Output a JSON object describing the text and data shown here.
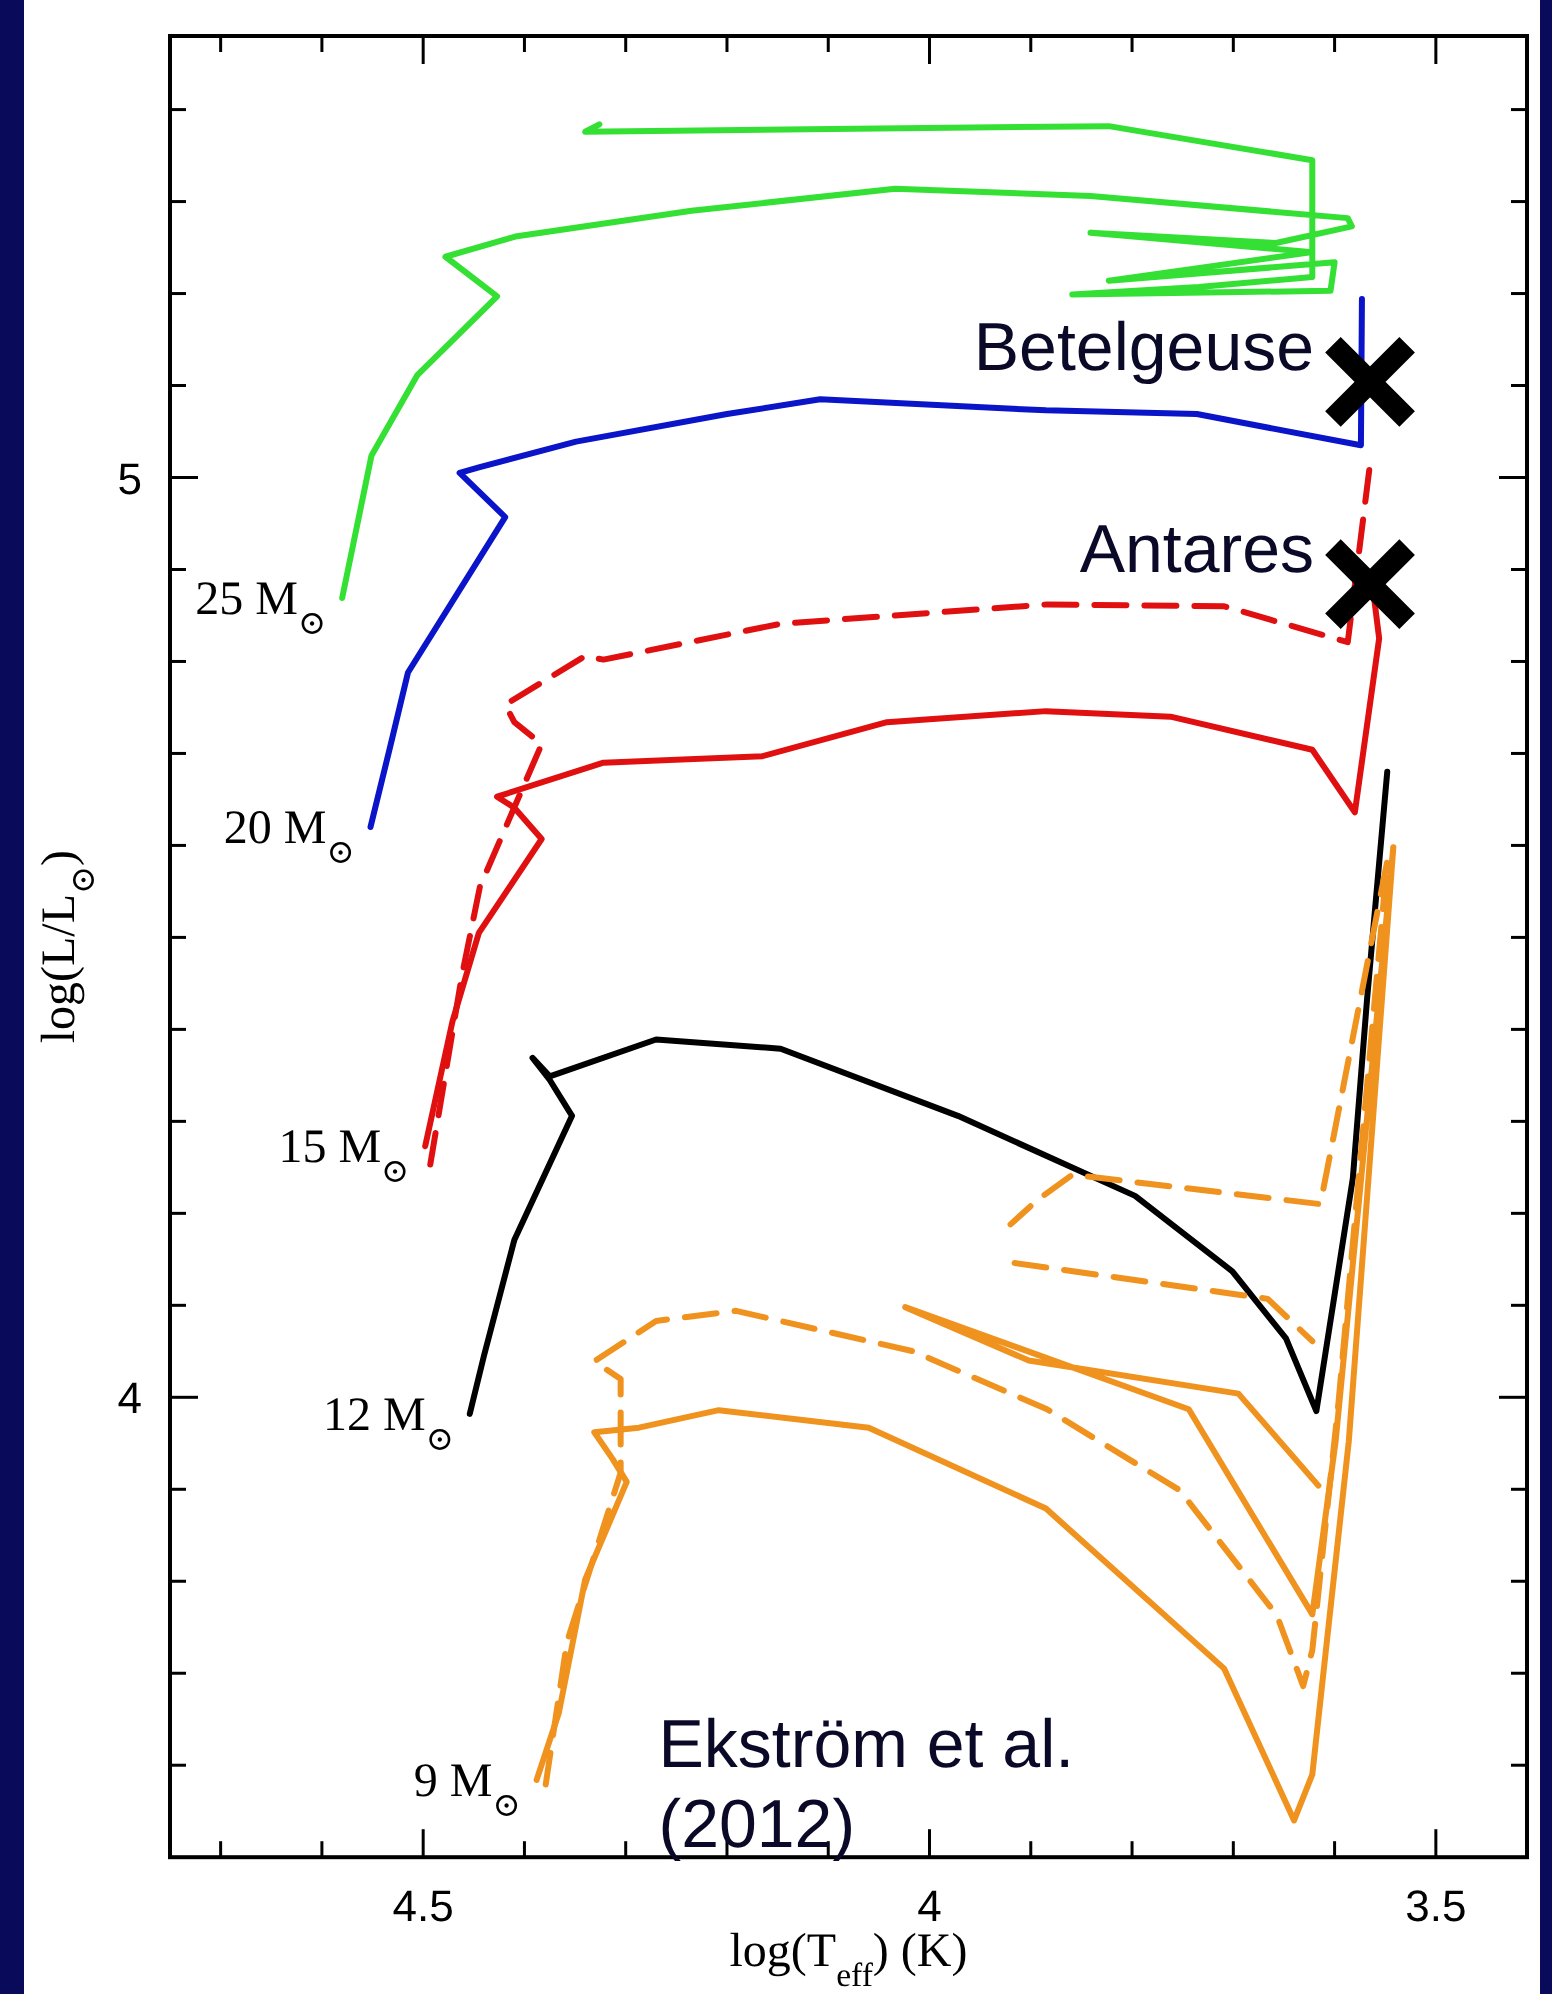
{
  "chart_data": {
    "type": "line",
    "xlabel": "log(T$_{eff}$) (K)",
    "ylabel": "log(L/L$_{⊙}$)",
    "xlim": [
      4.75,
      3.41
    ],
    "ylim": [
      3.5,
      5.48
    ],
    "xticks": [
      {
        "value": 4.7,
        "label": null
      },
      {
        "value": 4.6,
        "label": null
      },
      4.5,
      {
        "value": 4.4,
        "label": null
      },
      {
        "value": 4.3,
        "label": null
      },
      {
        "value": 4.2,
        "label": null
      },
      {
        "value": 4.1,
        "label": null
      },
      4,
      {
        "value": 3.9,
        "label": null
      },
      {
        "value": 3.8,
        "label": null
      },
      {
        "value": 3.7,
        "label": null
      },
      {
        "value": 3.6,
        "label": null
      },
      3.5
    ],
    "yticks": [
      {
        "value": 3.6,
        "label": null
      },
      {
        "value": 3.7,
        "label": null
      },
      {
        "value": 3.8,
        "label": null
      },
      {
        "value": 3.9,
        "label": null
      },
      4,
      {
        "value": 4.1,
        "label": null
      },
      {
        "value": 4.2,
        "label": null
      },
      {
        "value": 4.3,
        "label": null
      },
      {
        "value": 4.4,
        "label": null
      },
      {
        "value": 4.5,
        "label": null
      },
      {
        "value": 4.6,
        "label": null
      },
      {
        "value": 4.7,
        "label": null
      },
      {
        "value": 4.8,
        "label": null
      },
      {
        "value": 4.9,
        "label": null
      },
      5,
      {
        "value": 5.1,
        "label": null
      },
      {
        "value": 5.2,
        "label": null
      },
      {
        "value": 5.3,
        "label": null
      },
      {
        "value": 5.4,
        "label": null
      }
    ],
    "series": [
      {
        "color": "#33e033",
        "line_style": "solid",
        "x": [
          4.58,
          4.551,
          4.506,
          4.427,
          4.478,
          4.409,
          4.235,
          4.034,
          3.841,
          3.587,
          3.583,
          3.658,
          3.841,
          3.622,
          3.823,
          3.6,
          3.604,
          3.859,
          3.734,
          3.622,
          3.622,
          3.823,
          4.34,
          4.326
        ],
        "values": [
          4.869,
          5.024,
          5.111,
          5.197,
          5.24,
          5.262,
          5.29,
          5.314,
          5.306,
          5.282,
          5.273,
          5.255,
          5.266,
          5.245,
          5.214,
          5.234,
          5.203,
          5.199,
          5.207,
          5.218,
          5.345,
          5.382,
          5.376,
          5.384
        ]
      },
      {
        "color": "#0a14c8",
        "line_style": "solid",
        "x": [
          4.552,
          4.532,
          4.515,
          4.419,
          4.464,
          4.445,
          4.349,
          4.2,
          4.108,
          3.885,
          3.736,
          3.574,
          3.573
        ],
        "values": [
          4.62,
          4.71,
          4.788,
          4.957,
          5.005,
          5.011,
          5.039,
          5.069,
          5.085,
          5.073,
          5.069,
          5.035,
          5.194
        ]
      },
      {
        "color": "#e01010",
        "line_style": "solid",
        "x": [
          4.498,
          4.471,
          4.445,
          4.383,
          4.41,
          4.427,
          4.322,
          4.165,
          4.042,
          3.885,
          3.762,
          3.622,
          3.58,
          3.556,
          3.561
        ],
        "values": [
          4.273,
          4.409,
          4.505,
          4.607,
          4.641,
          4.653,
          4.69,
          4.697,
          4.734,
          4.746,
          4.74,
          4.704,
          4.636,
          4.825,
          4.869
        ]
      },
      {
        "color": "#e01010",
        "line_style": "dashed",
        "x": [
          4.493,
          4.462,
          4.444,
          4.383,
          4.41,
          4.419,
          4.34,
          4.322,
          4.147,
          3.884,
          3.709,
          3.587,
          3.565
        ],
        "values": [
          4.253,
          4.457,
          4.555,
          4.71,
          4.734,
          4.753,
          4.806,
          4.802,
          4.841,
          4.862,
          4.86,
          4.821,
          5.015
        ]
      },
      {
        "color": "#000000",
        "line_style": "solid",
        "x": [
          4.454,
          4.44,
          4.41,
          4.353,
          4.375,
          4.392,
          4.375,
          4.27,
          4.147,
          3.972,
          3.797,
          3.701,
          3.648,
          3.618,
          3.582,
          3.568,
          3.548
        ],
        "values": [
          3.982,
          4.045,
          4.171,
          4.306,
          4.345,
          4.369,
          4.349,
          4.389,
          4.379,
          4.306,
          4.219,
          4.137,
          4.064,
          3.985,
          4.238,
          4.432,
          4.68
        ]
      },
      {
        "color": "#f0921e",
        "line_style": "solid",
        "x": [
          4.388,
          4.366,
          4.34,
          4.299,
          4.313,
          4.331,
          4.287,
          4.208,
          4.06,
          3.885,
          3.709,
          3.64,
          3.622,
          3.586,
          3.542,
          3.599,
          3.622,
          3.744,
          4.024,
          3.902,
          3.695,
          3.616
        ],
        "values": [
          3.584,
          3.657,
          3.802,
          3.908,
          3.933,
          3.962,
          3.967,
          3.986,
          3.967,
          3.879,
          3.705,
          3.54,
          3.59,
          3.952,
          4.598,
          3.952,
          3.764,
          3.987,
          4.098,
          4.04,
          4.004,
          3.904
        ]
      },
      {
        "color": "#f0921e",
        "line_style": "dashed",
        "x": [
          4.379,
          4.358,
          4.305,
          4.305,
          4.331,
          4.27,
          4.191,
          4.016,
          3.884,
          3.753,
          3.657,
          3.631,
          3.622,
          3.596,
          3.548,
          3.614,
          3.859,
          3.894,
          3.92,
          3.918,
          3.916,
          3.666,
          3.622
        ],
        "values": [
          3.579,
          3.734,
          3.918,
          4.02,
          4.039,
          4.083,
          4.094,
          4.05,
          3.987,
          3.899,
          3.763,
          3.686,
          3.725,
          3.996,
          4.583,
          4.21,
          4.242,
          4.214,
          4.188,
          null,
          4.146,
          4.107,
          4.061
        ]
      },
      {
        "type": "scatter",
        "name": "Betelgeuse",
        "color": "#000000",
        "marker": "cross",
        "x": [
          3.565
        ],
        "values": [
          5.104
        ]
      },
      {
        "type": "scatter",
        "name": "Antares",
        "color": "#000000",
        "marker": "cross",
        "x": [
          3.565
        ],
        "values": [
          4.884
        ]
      }
    ],
    "annotations": [
      {
        "text": "25 M$_{⊙}$",
        "x": 4.58,
        "y": 4.869
      },
      {
        "text": "20 M$_{⊙}$",
        "x": 4.552,
        "y": 4.62
      },
      {
        "text": "15 M$_{⊙}$",
        "x": 4.498,
        "y": 4.273
      },
      {
        "text": "12 M$_{⊙}$",
        "x": 4.454,
        "y": 3.982
      },
      {
        "text": "9 M$_{⊙}$",
        "x": 4.388,
        "y": 3.584
      },
      "Ekström et al. (2012)"
    ]
  }
}
